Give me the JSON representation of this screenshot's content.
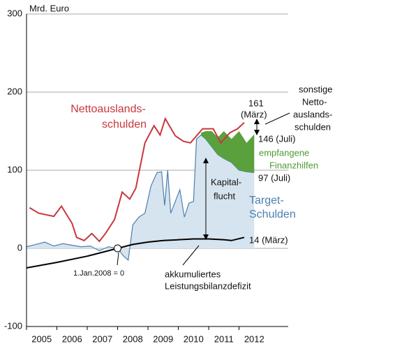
{
  "chart_data": {
    "type": "line",
    "ylabel": "Mrd. Euro",
    "xlim": [
      2005,
      2013.62
    ],
    "xticks": [
      2005,
      2006,
      2007,
      2008,
      2009,
      2010,
      2011,
      2012
    ],
    "ylim": [
      -100,
      300
    ],
    "yticks": [
      -100,
      0,
      100,
      200,
      300
    ],
    "grid": true,
    "series": [
      {
        "type": "area",
        "color": "#4d7fae",
        "fill": "#d6e4ef",
        "x": [
          2005.0,
          2005.3,
          2005.6,
          2005.9,
          2006.2,
          2006.5,
          2006.8,
          2007.1,
          2007.4,
          2007.7,
          2008.0,
          2008.2,
          2008.35,
          2008.5,
          2008.7,
          2008.9,
          2009.1,
          2009.3,
          2009.45,
          2009.55,
          2009.65,
          2009.75,
          2009.9,
          2010.05,
          2010.2,
          2010.35,
          2010.5,
          2010.6,
          2010.75,
          2010.9,
          2011.1,
          2011.3,
          2011.5,
          2011.75,
          2012.0,
          2012.25,
          2012.5
        ],
        "values": [
          2,
          5,
          8,
          3,
          6,
          4,
          2,
          3,
          -3,
          2,
          0,
          -10,
          -15,
          30,
          40,
          45,
          80,
          97,
          98,
          55,
          100,
          45,
          60,
          75,
          40,
          58,
          60,
          140,
          145,
          140,
          130,
          120,
          115,
          110,
          100,
          98,
          97
        ]
      },
      {
        "type": "stacked_area",
        "color": "#5aa03c",
        "stack_on": 0,
        "values": [
          null,
          null,
          null,
          null,
          null,
          null,
          null,
          null,
          null,
          null,
          null,
          null,
          null,
          null,
          null,
          null,
          null,
          null,
          null,
          null,
          null,
          null,
          null,
          null,
          null,
          null,
          null,
          null,
          3,
          10,
          20,
          22,
          35,
          30,
          50,
          37,
          49
        ]
      },
      {
        "type": "line",
        "color": "#c8373d",
        "x": [
          2005.1,
          2005.4,
          2005.9,
          2006.15,
          2006.5,
          2006.65,
          2006.9,
          2007.15,
          2007.4,
          2007.6,
          2007.9,
          2008.15,
          2008.4,
          2008.6,
          2008.9,
          2009.2,
          2009.4,
          2009.57,
          2009.9,
          2010.17,
          2010.4,
          2010.8,
          2011.15,
          2011.4,
          2011.7,
          2011.95,
          2012.17
        ],
        "values": [
          52,
          45,
          41,
          54,
          32,
          14,
          10,
          19,
          9,
          19,
          37,
          72,
          63,
          77,
          135,
          157,
          145,
          166,
          144,
          137,
          135,
          153,
          153,
          135,
          148,
          153,
          161
        ]
      },
      {
        "type": "line",
        "color": "#000000",
        "x": [
          2005,
          2006,
          2007,
          2008,
          2008.5,
          2009,
          2009.5,
          2010,
          2010.5,
          2011,
          2011.5,
          2011.75,
          2012.17
        ],
        "values": [
          -25,
          -18,
          -10,
          0,
          5,
          8,
          10,
          11,
          12,
          12,
          11,
          10,
          14
        ]
      }
    ],
    "annotations": [
      "Nettoauslands-",
      "schulden",
      "161",
      "(März)",
      "sonstige",
      "Netto-",
      "auslands-",
      "schulden",
      "146 (Juli)",
      "empfangene",
      "Finanzhilfen",
      "97 (Juli)",
      "Kapital-",
      "flucht",
      "Target-",
      "Schulden",
      "14 (März)",
      "1.Jan.2008 = 0",
      "akkumuliertes",
      "Leistungsbilanzdefizit"
    ]
  }
}
